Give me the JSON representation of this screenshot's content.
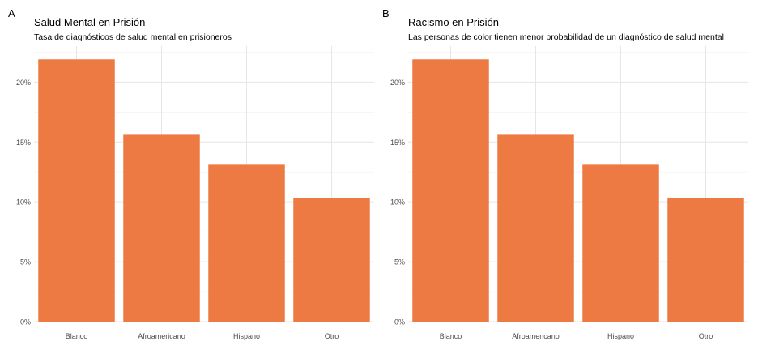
{
  "chart_data": [
    {
      "panel_tag": "A",
      "type": "bar",
      "title": "Salud Mental en Prisión",
      "subtitle": "Tasa de diagnósticos de salud mental en prisioneros",
      "xlabel": "",
      "ylabel": "",
      "categories": [
        "Blanco",
        "Afroamericano",
        "Hispano",
        "Otro"
      ],
      "values": [
        0.219,
        0.156,
        0.131,
        0.103
      ],
      "ylim": [
        0,
        0.23
      ],
      "yticks": [
        0,
        0.05,
        0.1,
        0.15,
        0.2
      ],
      "ytick_labels": [
        "0%",
        "5%",
        "10%",
        "15%",
        "20%"
      ],
      "bar_color": "#EE7A43",
      "grid": true
    },
    {
      "panel_tag": "B",
      "type": "bar",
      "title": "Racismo en Prisión",
      "subtitle": "Las personas de color tienen menor probabilidad de un diagnóstico de salud mental",
      "xlabel": "",
      "ylabel": "",
      "categories": [
        "Blanco",
        "Afroamericano",
        "Hispano",
        "Otro"
      ],
      "values": [
        0.219,
        0.156,
        0.131,
        0.103
      ],
      "ylim": [
        0,
        0.23
      ],
      "yticks": [
        0,
        0.05,
        0.1,
        0.15,
        0.2
      ],
      "ytick_labels": [
        "0%",
        "5%",
        "10%",
        "15%",
        "20%"
      ],
      "bar_color": "#EE7A43",
      "grid": true
    }
  ]
}
